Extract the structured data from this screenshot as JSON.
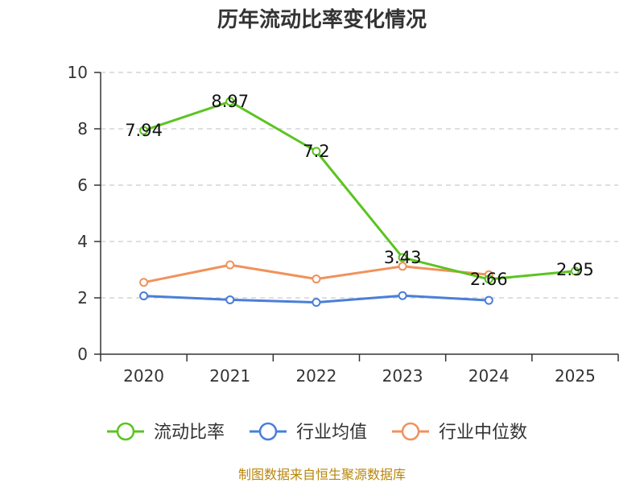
{
  "chart_data": {
    "type": "line",
    "title": "历年流动比率变化情况",
    "categories": [
      "2020",
      "2021",
      "2022",
      "2023",
      "2024",
      "2025"
    ],
    "y_ticks": [
      "0",
      "2",
      "4",
      "6",
      "8",
      "10"
    ],
    "ylim": [
      0,
      10
    ],
    "grid": true,
    "legend_position": "bottom",
    "series": [
      {
        "name": "流动比率",
        "color": "#5bc41f",
        "values": [
          7.94,
          8.97,
          7.2,
          3.43,
          2.66,
          2.95
        ],
        "labels": [
          "7.94",
          "8.97",
          "7.2",
          "3.43",
          "2.66",
          "2.95"
        ]
      },
      {
        "name": "行业均值",
        "color": "#4a7fd9",
        "values": [
          2.07,
          1.93,
          1.84,
          2.08,
          1.91,
          null
        ]
      },
      {
        "name": "行业中位数",
        "color": "#f0925c",
        "values": [
          2.55,
          3.17,
          2.67,
          3.12,
          2.82,
          null
        ]
      }
    ],
    "source": "制图数据来自恒生聚源数据库"
  }
}
